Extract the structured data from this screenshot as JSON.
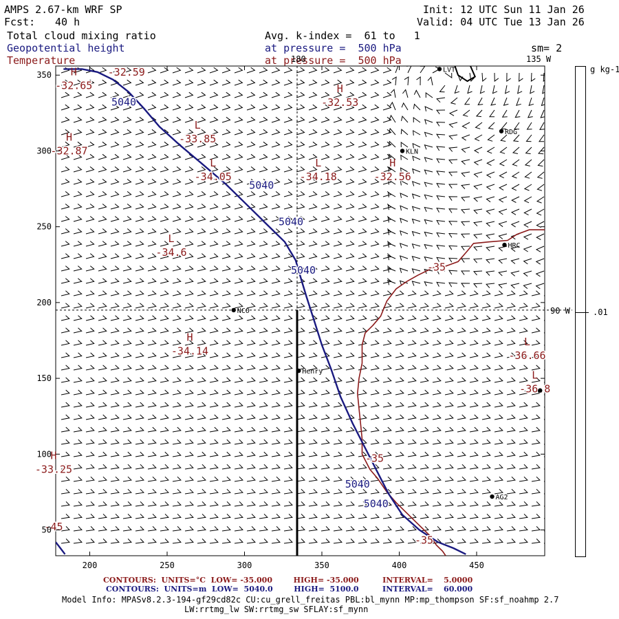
{
  "header": {
    "model": "AMPS 2.67-km WRF SP",
    "fcst_label": "Fcst:",
    "fcst_value": "40 h",
    "init": "Init: 12 UTC Sun 11 Jan 26",
    "valid": "Valid: 04 UTC Tue 13 Jan 26",
    "field1": "Total cloud mixing ratio",
    "field2": "Geopotential height",
    "field3": "Temperature",
    "avg_line": "Avg. k-index =  61 to   1",
    "pressure1": "at pressure =  500 hPa",
    "pressure2": "at pressure =  500 hPa",
    "sm": "sm= 2",
    "lon_top": "135 W",
    "lon_top_tick": "180",
    "lon_right": "90 W"
  },
  "colorbar": {
    "units": "g kg-1",
    "tick": ".01"
  },
  "footer": {
    "contours1": "CONTOURS:  UNITS=°C  LOW= -35.000        HIGH= -35.000         INTERVAL=    5.0000",
    "contours2": "CONTOURS:  UNITS=m  LOW=  5040.0        HIGH=  5100.0         INTERVAL=    60.000",
    "model_info": "Model Info: MPASv8.2.3-194-gf29cd82c CU:cu_grell_freitas PBL:bl_mynn MP:mp_thompson SF:sf_noahmp 2.7",
    "model_info2": "LW:rrtmg_lw SW:rrtmg_sw SFLAY:sf_mynn"
  },
  "colors": {
    "height": "#1a1a80",
    "temperature": "#8b1a1a",
    "barbs": "#000000"
  },
  "chart_data": {
    "type": "contour-map",
    "xlim": [
      178,
      494
    ],
    "ylim": [
      33,
      356
    ],
    "xticks": [
      200,
      250,
      300,
      350,
      400,
      450
    ],
    "yticks": [
      50,
      100,
      150,
      200,
      250,
      300,
      350
    ],
    "cross_x": 334,
    "cross_y": 195,
    "height_contour": {
      "label": "5040",
      "points": [
        [
          183,
          354
        ],
        [
          195,
          354
        ],
        [
          205,
          352
        ],
        [
          215,
          347
        ],
        [
          225,
          339
        ],
        [
          235,
          328
        ],
        [
          245,
          316
        ],
        [
          258,
          304
        ],
        [
          272,
          292
        ],
        [
          288,
          278
        ],
        [
          304,
          262
        ],
        [
          318,
          248
        ],
        [
          326,
          240
        ],
        [
          333,
          228
        ],
        [
          337,
          214
        ],
        [
          340,
          204
        ],
        [
          345,
          188
        ],
        [
          350,
          172
        ],
        [
          356,
          156
        ],
        [
          362,
          138
        ],
        [
          370,
          120
        ],
        [
          378,
          104
        ],
        [
          386,
          88
        ],
        [
          393,
          74
        ],
        [
          402,
          60
        ],
        [
          413,
          50
        ],
        [
          425,
          42
        ],
        [
          435,
          38
        ],
        [
          443,
          34
        ]
      ],
      "labels": [
        {
          "x": 222,
          "y": 330,
          "t": "5040"
        },
        {
          "x": 311,
          "y": 275,
          "t": "5040"
        },
        {
          "x": 330,
          "y": 251,
          "t": "5040"
        },
        {
          "x": 338,
          "y": 219,
          "t": "5040"
        },
        {
          "x": 373,
          "y": 78,
          "t": "5040"
        },
        {
          "x": 385,
          "y": 65,
          "t": "5040"
        }
      ]
    },
    "tail_contour": {
      "points": [
        [
          178,
          42
        ],
        [
          181,
          38
        ],
        [
          184,
          34
        ]
      ]
    },
    "temp_contours": [
      {
        "label": "-35",
        "points": [
          [
            494,
            248
          ],
          [
            484,
            248
          ],
          [
            476,
            245
          ],
          [
            470,
            241
          ],
          [
            458,
            240
          ],
          [
            448,
            239
          ],
          [
            444,
            234
          ],
          [
            438,
            227
          ],
          [
            430,
            224
          ],
          [
            422,
            223
          ],
          [
            412,
            218
          ],
          [
            405,
            214
          ],
          [
            398,
            209
          ],
          [
            392,
            201
          ],
          [
            388,
            191
          ],
          [
            383,
            185
          ],
          [
            378,
            180
          ],
          [
            376,
            172
          ],
          [
            376,
            160
          ],
          [
            374,
            150
          ],
          [
            373,
            140
          ],
          [
            374,
            130
          ],
          [
            375,
            120
          ],
          [
            376,
            110
          ],
          [
            376,
            100
          ],
          [
            381,
            90
          ],
          [
            386,
            84
          ],
          [
            392,
            75
          ],
          [
            398,
            68
          ],
          [
            404,
            62
          ],
          [
            410,
            56
          ],
          [
            416,
            50
          ],
          [
            420,
            46
          ],
          [
            424,
            40
          ],
          [
            428,
            36
          ],
          [
            430,
            33
          ]
        ]
      }
    ],
    "temp_labels": [
      {
        "x": 424,
        "y": 221,
        "t": "-35"
      },
      {
        "x": 384,
        "y": 95,
        "t": "-35"
      },
      {
        "x": 416,
        "y": 41,
        "t": "-35"
      }
    ],
    "extrema": [
      {
        "x": 187,
        "y": 348,
        "type": "H",
        "value": "-32.65"
      },
      {
        "x": 221,
        "y": 357,
        "type": "",
        "value": "-32.59"
      },
      {
        "x": 184,
        "y": 305,
        "type": "H",
        "value": "-32.87"
      },
      {
        "x": 267,
        "y": 313,
        "type": "L",
        "value": "-33.85"
      },
      {
        "x": 277,
        "y": 288,
        "type": "L",
        "value": "-34.05"
      },
      {
        "x": 345,
        "y": 288,
        "type": "L",
        "value": "-34.18"
      },
      {
        "x": 359,
        "y": 337,
        "type": "H",
        "value": "-32.53"
      },
      {
        "x": 393,
        "y": 288,
        "type": "H",
        "value": "-32.56"
      },
      {
        "x": 250,
        "y": 238,
        "type": "L",
        "value": "-34.6"
      },
      {
        "x": 262,
        "y": 173,
        "type": "H",
        "value": "-34.14"
      },
      {
        "x": 480,
        "y": 170,
        "type": "L",
        "value": "-36.66"
      },
      {
        "x": 485,
        "y": 148,
        "type": "L",
        "value": "-36.8"
      },
      {
        "x": 174,
        "y": 95,
        "type": "H",
        "value": "-33.25"
      },
      {
        "x": 174,
        "y": 57,
        "type": "",
        "value": "-45"
      }
    ],
    "stations": [
      {
        "x": 293,
        "y": 195,
        "name": "NCO"
      },
      {
        "x": 335,
        "y": 155,
        "name": "Henry"
      },
      {
        "x": 402,
        "y": 300,
        "name": "KLN"
      },
      {
        "x": 466,
        "y": 313,
        "name": "RDG"
      },
      {
        "x": 468,
        "y": 238,
        "name": "HRC"
      },
      {
        "x": 460,
        "y": 72,
        "name": "AG2"
      },
      {
        "x": 426,
        "y": 354,
        "name": "LVT"
      },
      {
        "x": 491,
        "y": 142,
        "name": ""
      }
    ]
  }
}
